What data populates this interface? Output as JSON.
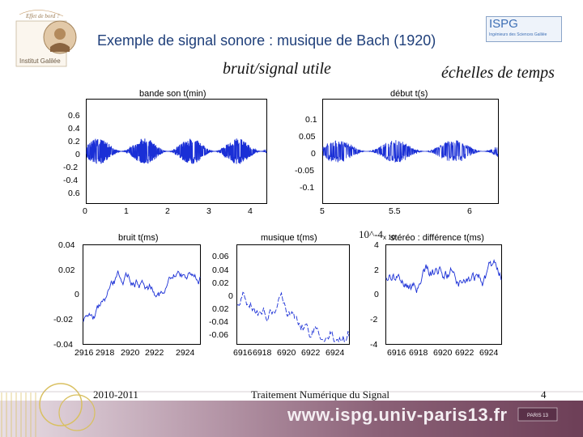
{
  "header": {
    "title": "Exemple de signal sonore : musique de Bach (1920)",
    "subtitle_left": "bruit/signal utile",
    "subtitle_right": "échelles de temps",
    "logo_left_top_text": "Effet de bord ?",
    "logo_left_bottom_text": "Institut Galilée",
    "logo_right_text": "ISPG",
    "logo_right_subtext": "Ingénieurs des Sciences Galilée"
  },
  "plots": {
    "bande": {
      "title": "bande son t(min)",
      "yticks": [
        "0.6",
        "0.4",
        "0.2",
        "0",
        "-0.2",
        "-0.4",
        "0.6"
      ],
      "xticks": [
        "0",
        "1",
        "2",
        "3",
        "4"
      ]
    },
    "debut": {
      "title": "début t(s)",
      "yticks": [
        "0.1",
        "0.05",
        "0",
        "-0.05",
        "-0.1"
      ],
      "xticks": [
        "5",
        "5.5",
        "6"
      ]
    },
    "bruit": {
      "title": "bruit t(ms)",
      "yticks": [
        "0.04",
        "0.02",
        "0",
        "-0.02",
        "-0.04"
      ],
      "xticks": [
        "2916",
        "2918",
        "2920",
        "2922",
        "2924"
      ]
    },
    "musique": {
      "title": "musique t(ms)",
      "yticks": [
        "0.06",
        "0.04",
        "0.02",
        "0",
        "0.02",
        "-0.04",
        "-0.06"
      ],
      "xticks": [
        "6916",
        "6918",
        "6920",
        "6922",
        "6924"
      ]
    },
    "stereo": {
      "title": "stéréo : différence t(ms)",
      "exponent_overlay": "10^-4",
      "exponent_small": "x 10",
      "yticks": [
        "4",
        "2",
        "0",
        "-2",
        "-4"
      ],
      "xticks": [
        "6916",
        "6918",
        "6920",
        "6922",
        "6924"
      ]
    }
  },
  "footer": {
    "year": "2010-2011",
    "course": "Traitement Numérique du Signal",
    "page": "4",
    "url": "www.ispg.univ-paris13.fr"
  },
  "colors": {
    "signal": "#1a2fd6",
    "title": "#1f3f7a"
  }
}
